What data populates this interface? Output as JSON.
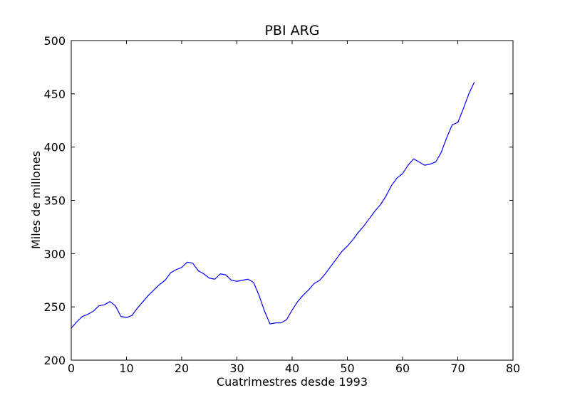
{
  "chart_data": {
    "type": "line",
    "title": "PBI ARG",
    "xlabel": "Cuatrimestres desde 1993",
    "ylabel": "Miles de millones",
    "xlim": [
      0,
      80
    ],
    "ylim": [
      200,
      500
    ],
    "xticks": [
      0,
      10,
      20,
      30,
      40,
      50,
      60,
      70,
      80
    ],
    "yticks": [
      200,
      250,
      300,
      350,
      400,
      450,
      500
    ],
    "grid": false,
    "colors": {
      "line": "#0000ff",
      "axes": "#000000",
      "background": "#ffffff"
    },
    "series": [
      {
        "x": [
          0,
          1,
          2,
          3,
          4,
          5,
          6,
          7,
          8,
          9,
          10,
          11,
          12,
          13,
          14,
          15,
          16,
          17,
          18,
          19,
          20,
          21,
          22,
          23,
          24,
          25,
          26,
          27,
          28,
          29,
          30,
          31,
          32,
          33,
          34,
          35,
          36,
          37,
          38,
          39,
          40,
          41,
          42,
          43,
          44,
          45,
          46,
          47,
          48,
          49,
          50,
          51,
          52,
          53,
          54,
          55,
          56,
          57,
          58,
          59,
          60,
          61,
          62,
          63,
          64,
          65,
          66,
          67,
          68,
          69,
          70,
          71,
          72,
          73
        ],
        "values": [
          230,
          236,
          241,
          243,
          246,
          251,
          252,
          255,
          251,
          241,
          240,
          242,
          249,
          255,
          261,
          266,
          271,
          275,
          282,
          285,
          287,
          292,
          291,
          284,
          281,
          277,
          276,
          281,
          280,
          275,
          274,
          275,
          276,
          273,
          261,
          246,
          234,
          235,
          235,
          238,
          247,
          255,
          261,
          266,
          272,
          275,
          281,
          288,
          295,
          302,
          307,
          313,
          320,
          326,
          333,
          340,
          346,
          354,
          364,
          371,
          375,
          383,
          389,
          386,
          383,
          384,
          386,
          395,
          409,
          421,
          423,
          436,
          450,
          461
        ]
      }
    ]
  }
}
